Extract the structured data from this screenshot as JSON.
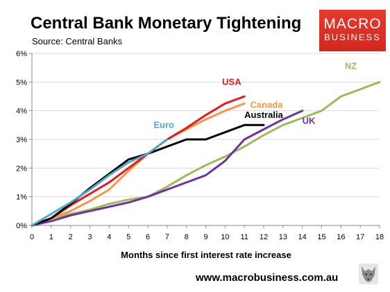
{
  "header": {
    "title": "Central Bank Monetary Tightening",
    "source": "Source: Central Banks"
  },
  "logo": {
    "line1": "MACRO",
    "line2": "BUSINESS"
  },
  "footer": {
    "website": "www.macrobusiness.com.au",
    "icon": "wolf-icon"
  },
  "chart_data": {
    "type": "line",
    "title": "Central Bank Monetary Tightening",
    "xlabel": "Months since first interest rate increase",
    "ylabel": "",
    "xlim": [
      0,
      18
    ],
    "ylim": [
      0,
      6
    ],
    "x_ticks": [
      "0",
      "1",
      "2",
      "3",
      "4",
      "5",
      "6",
      "7",
      "8",
      "9",
      "10",
      "11",
      "12",
      "13",
      "14",
      "15",
      "16",
      "17",
      "18"
    ],
    "y_ticks": [
      "0%",
      "1%",
      "2%",
      "3%",
      "4%",
      "5%",
      "6%"
    ],
    "grid": "horizontal",
    "series": [
      {
        "name": "Euro",
        "color": "#4bacc6",
        "points": [
          [
            0,
            0
          ],
          [
            1,
            0.4
          ],
          [
            2,
            0.8
          ],
          [
            3,
            1.25
          ],
          [
            4,
            1.75
          ],
          [
            5,
            2.2
          ],
          [
            6,
            2.5
          ],
          [
            7,
            3.0
          ]
        ]
      },
      {
        "name": "USA",
        "color": "#e41a1c",
        "points": [
          [
            0,
            0
          ],
          [
            1,
            0.25
          ],
          [
            2,
            0.7
          ],
          [
            3,
            1.1
          ],
          [
            4,
            1.5
          ],
          [
            5,
            2.0
          ],
          [
            6,
            2.5
          ],
          [
            7,
            3.0
          ],
          [
            8,
            3.4
          ],
          [
            9,
            3.85
          ],
          [
            10,
            4.25
          ],
          [
            11,
            4.5
          ]
        ]
      },
      {
        "name": "Canada",
        "color": "#f79646",
        "points": [
          [
            0,
            0
          ],
          [
            1,
            0.25
          ],
          [
            2,
            0.5
          ],
          [
            3,
            0.85
          ],
          [
            4,
            1.25
          ],
          [
            5,
            1.9
          ],
          [
            6,
            2.5
          ],
          [
            7,
            3.0
          ],
          [
            8,
            3.35
          ],
          [
            9,
            3.7
          ],
          [
            10,
            4.0
          ],
          [
            11,
            4.25
          ]
        ]
      },
      {
        "name": "Australia",
        "color": "#000000",
        "points": [
          [
            0,
            0
          ],
          [
            1,
            0.25
          ],
          [
            2,
            0.75
          ],
          [
            3,
            1.3
          ],
          [
            4,
            1.8
          ],
          [
            5,
            2.3
          ],
          [
            6,
            2.5
          ],
          [
            7,
            2.75
          ],
          [
            8,
            3.0
          ],
          [
            9,
            3.0
          ],
          [
            10,
            3.25
          ],
          [
            11,
            3.5
          ],
          [
            12,
            3.5
          ]
        ]
      },
      {
        "name": "UK",
        "color": "#7030a0",
        "points": [
          [
            0,
            0
          ],
          [
            1,
            0.15
          ],
          [
            2,
            0.35
          ],
          [
            3,
            0.5
          ],
          [
            4,
            0.65
          ],
          [
            5,
            0.8
          ],
          [
            6,
            1.0
          ],
          [
            7,
            1.25
          ],
          [
            8,
            1.5
          ],
          [
            9,
            1.75
          ],
          [
            10,
            2.25
          ],
          [
            11,
            3.0
          ],
          [
            12,
            3.35
          ],
          [
            13,
            3.7
          ],
          [
            14,
            4.0
          ]
        ]
      },
      {
        "name": "NZ",
        "color": "#9bbb59",
        "points": [
          [
            0,
            0
          ],
          [
            1,
            0.25
          ],
          [
            2,
            0.4
          ],
          [
            3,
            0.55
          ],
          [
            4,
            0.75
          ],
          [
            5,
            0.9
          ],
          [
            6,
            1.0
          ],
          [
            7,
            1.35
          ],
          [
            8,
            1.75
          ],
          [
            9,
            2.1
          ],
          [
            10,
            2.4
          ],
          [
            11,
            2.75
          ],
          [
            12,
            3.15
          ],
          [
            13,
            3.5
          ],
          [
            14,
            3.75
          ],
          [
            15,
            4.0
          ],
          [
            16,
            4.5
          ],
          [
            17,
            4.75
          ],
          [
            18,
            5.0
          ]
        ]
      }
    ],
    "series_labels": [
      {
        "text": "Euro",
        "color": "#4bacc6",
        "x": 6.3,
        "y": 3.4
      },
      {
        "text": "USA",
        "color": "#e41a1c",
        "x": 9.85,
        "y": 4.9
      },
      {
        "text": "Canada",
        "color": "#f79646",
        "x": 11.3,
        "y": 4.1
      },
      {
        "text": "Australia",
        "color": "#000000",
        "x": 11.0,
        "y": 3.75
      },
      {
        "text": "UK",
        "color": "#7030a0",
        "x": 14.0,
        "y": 3.55
      },
      {
        "text": "NZ",
        "color": "#9bbb59",
        "x": 16.2,
        "y": 5.45
      }
    ]
  }
}
